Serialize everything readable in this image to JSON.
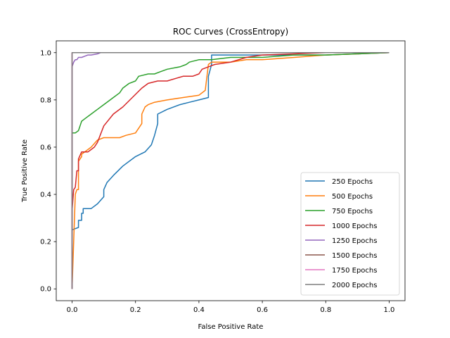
{
  "chart_data": {
    "type": "line",
    "title": "ROC Curves (CrossEntropy)",
    "xlabel": "False Positive Rate",
    "ylabel": "True Positive Rate",
    "xlim": [
      -0.05,
      1.05
    ],
    "ylim": [
      -0.05,
      1.05
    ],
    "xticks": [
      "0.0",
      "0.2",
      "0.4",
      "0.6",
      "0.8",
      "1.0"
    ],
    "yticks": [
      "0.0",
      "0.2",
      "0.4",
      "0.6",
      "0.8",
      "1.0"
    ],
    "grid": false,
    "legend_position": "lower-right",
    "series": [
      {
        "name": "250 Epochs",
        "color": "#1f77b4",
        "x": [
          0,
          0,
          0.02,
          0.02,
          0.03,
          0.03,
          0.035,
          0.035,
          0.06,
          0.08,
          0.1,
          0.1,
          0.11,
          0.13,
          0.16,
          0.2,
          0.23,
          0.25,
          0.26,
          0.27,
          0.27,
          0.3,
          0.34,
          0.37,
          0.4,
          0.43,
          0.43,
          0.44,
          0.44,
          0.6,
          0.8,
          1.0
        ],
        "y": [
          0,
          0.25,
          0.26,
          0.29,
          0.29,
          0.32,
          0.32,
          0.34,
          0.34,
          0.36,
          0.39,
          0.42,
          0.45,
          0.48,
          0.52,
          0.56,
          0.58,
          0.61,
          0.65,
          0.7,
          0.74,
          0.76,
          0.78,
          0.79,
          0.8,
          0.81,
          0.9,
          0.95,
          0.99,
          0.99,
          0.99,
          1.0
        ]
      },
      {
        "name": "500 Epochs",
        "color": "#ff7f0e",
        "x": [
          0,
          0.005,
          0.01,
          0.015,
          0.02,
          0.02,
          0.03,
          0.03,
          0.06,
          0.08,
          0.1,
          0.15,
          0.17,
          0.2,
          0.22,
          0.22,
          0.23,
          0.24,
          0.26,
          0.3,
          0.35,
          0.4,
          0.42,
          0.43,
          0.44,
          0.5,
          0.55,
          0.6,
          0.7,
          0.8,
          0.9,
          1.0
        ],
        "y": [
          0,
          0.2,
          0.4,
          0.42,
          0.42,
          0.54,
          0.56,
          0.57,
          0.6,
          0.63,
          0.64,
          0.64,
          0.65,
          0.66,
          0.7,
          0.74,
          0.77,
          0.78,
          0.79,
          0.8,
          0.81,
          0.82,
          0.84,
          0.95,
          0.96,
          0.96,
          0.97,
          0.97,
          0.98,
          0.99,
          0.995,
          1.0
        ]
      },
      {
        "name": "750 Epochs",
        "color": "#2ca02c",
        "x": [
          0,
          0,
          0.01,
          0.02,
          0.03,
          0.04,
          0.06,
          0.08,
          0.1,
          0.12,
          0.13,
          0.15,
          0.16,
          0.18,
          0.2,
          0.21,
          0.24,
          0.26,
          0.28,
          0.3,
          0.34,
          0.36,
          0.37,
          0.4,
          0.44,
          0.5,
          0.56,
          0.6,
          0.7,
          0.8,
          1.0
        ],
        "y": [
          0,
          0.66,
          0.66,
          0.67,
          0.71,
          0.72,
          0.74,
          0.76,
          0.78,
          0.8,
          0.81,
          0.83,
          0.85,
          0.87,
          0.88,
          0.9,
          0.91,
          0.91,
          0.92,
          0.93,
          0.94,
          0.95,
          0.96,
          0.97,
          0.97,
          0.98,
          0.98,
          0.98,
          0.99,
          0.99,
          1.0
        ]
      },
      {
        "name": "1000 Epochs",
        "color": "#d62728",
        "x": [
          0,
          0,
          0.005,
          0.01,
          0.015,
          0.02,
          0.02,
          0.03,
          0.05,
          0.07,
          0.08,
          0.1,
          0.13,
          0.16,
          0.19,
          0.22,
          0.24,
          0.27,
          0.3,
          0.35,
          0.38,
          0.4,
          0.41,
          0.43,
          0.45,
          0.5,
          0.55,
          0.6,
          0.7,
          0.8,
          1.0
        ],
        "y": [
          0,
          0.33,
          0.42,
          0.43,
          0.5,
          0.5,
          0.55,
          0.58,
          0.58,
          0.6,
          0.62,
          0.69,
          0.74,
          0.77,
          0.81,
          0.85,
          0.87,
          0.88,
          0.88,
          0.9,
          0.9,
          0.91,
          0.93,
          0.94,
          0.95,
          0.96,
          0.98,
          0.99,
          0.995,
          1.0,
          1.0
        ]
      },
      {
        "name": "1250 Epochs",
        "color": "#9467bd",
        "x": [
          0,
          0,
          0.005,
          0.01,
          0.015,
          0.02,
          0.03,
          0.05,
          0.06,
          0.08,
          0.09,
          0.1,
          0.2,
          0.4,
          0.6,
          0.8,
          1.0
        ],
        "y": [
          0,
          0.94,
          0.96,
          0.97,
          0.97,
          0.98,
          0.98,
          0.99,
          0.99,
          0.995,
          1.0,
          1.0,
          1.0,
          1.0,
          1.0,
          1.0,
          1.0
        ]
      },
      {
        "name": "1500 Epochs",
        "color": "#8c564b",
        "x": [
          0,
          0,
          1.0
        ],
        "y": [
          0,
          1.0,
          1.0
        ]
      },
      {
        "name": "1750 Epochs",
        "color": "#e377c2",
        "x": [
          0,
          0,
          1.0
        ],
        "y": [
          0,
          1.0,
          1.0
        ]
      },
      {
        "name": "2000 Epochs",
        "color": "#7f7f7f",
        "x": [
          0,
          0,
          1.0
        ],
        "y": [
          0,
          1.0,
          1.0
        ]
      }
    ]
  }
}
